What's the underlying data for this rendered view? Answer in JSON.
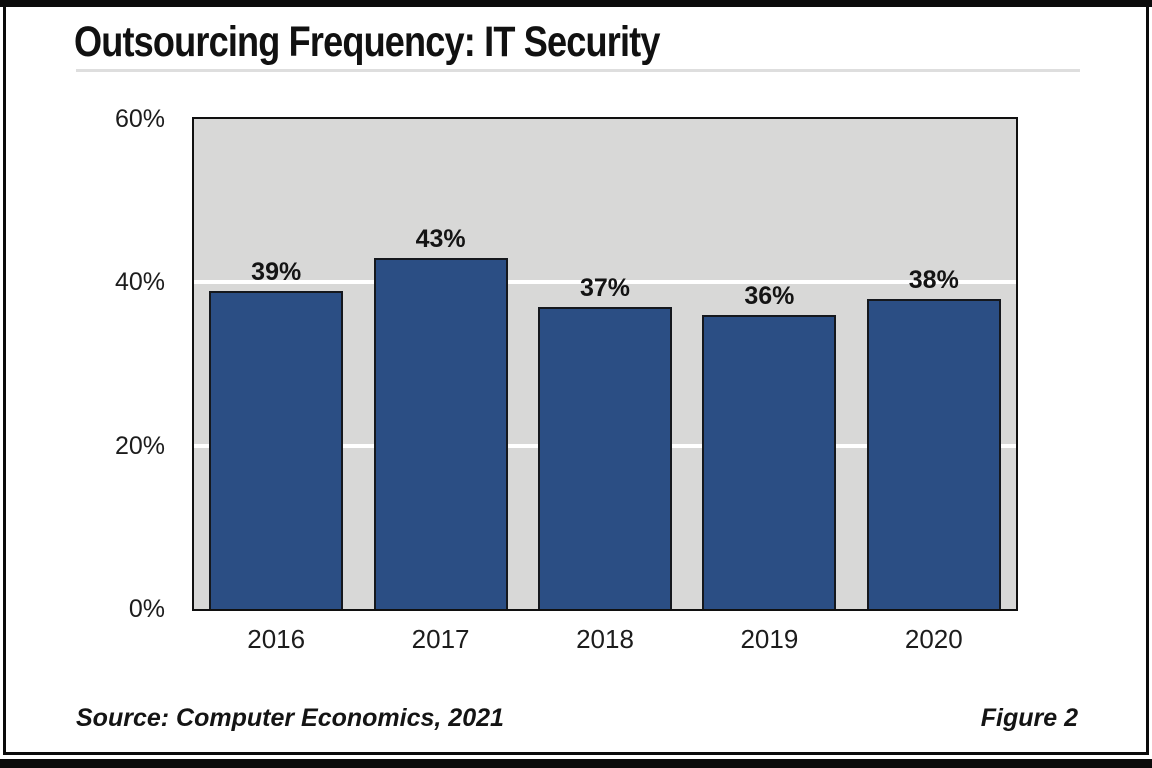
{
  "figure": {
    "title": "Outsourcing Frequency: IT Security",
    "source_note": "Source: Computer Economics, 2021",
    "figure_label": "Figure 2"
  },
  "colors": {
    "bar_fill": "#2b4e84",
    "bar_border": "#15181d",
    "plot_background": "#d8d8d7",
    "plot_border": "#101010",
    "gridline": "#ffffff",
    "frame_black": "#0b0b0b",
    "divider_gray": "#dedede",
    "text": "#1c1c1c"
  },
  "chart_data": {
    "type": "bar",
    "title": "Outsourcing Frequency: IT Security",
    "categories": [
      "2016",
      "2017",
      "2018",
      "2019",
      "2020"
    ],
    "values": [
      39,
      43,
      37,
      36,
      38
    ],
    "value_labels": [
      "39%",
      "43%",
      "37%",
      "36%",
      "38%"
    ],
    "xlabel": "",
    "ylabel": "",
    "ylim": [
      0,
      60
    ],
    "yticks": [
      {
        "value": 0,
        "label": "0%"
      },
      {
        "value": 20,
        "label": "20%"
      },
      {
        "value": 40,
        "label": "40%"
      },
      {
        "value": 60,
        "label": "60%"
      }
    ],
    "gridlines_at": [
      20,
      40
    ],
    "legend": "none",
    "plot_background": "#d8d8d7",
    "bar_color": "#2b4e84"
  }
}
